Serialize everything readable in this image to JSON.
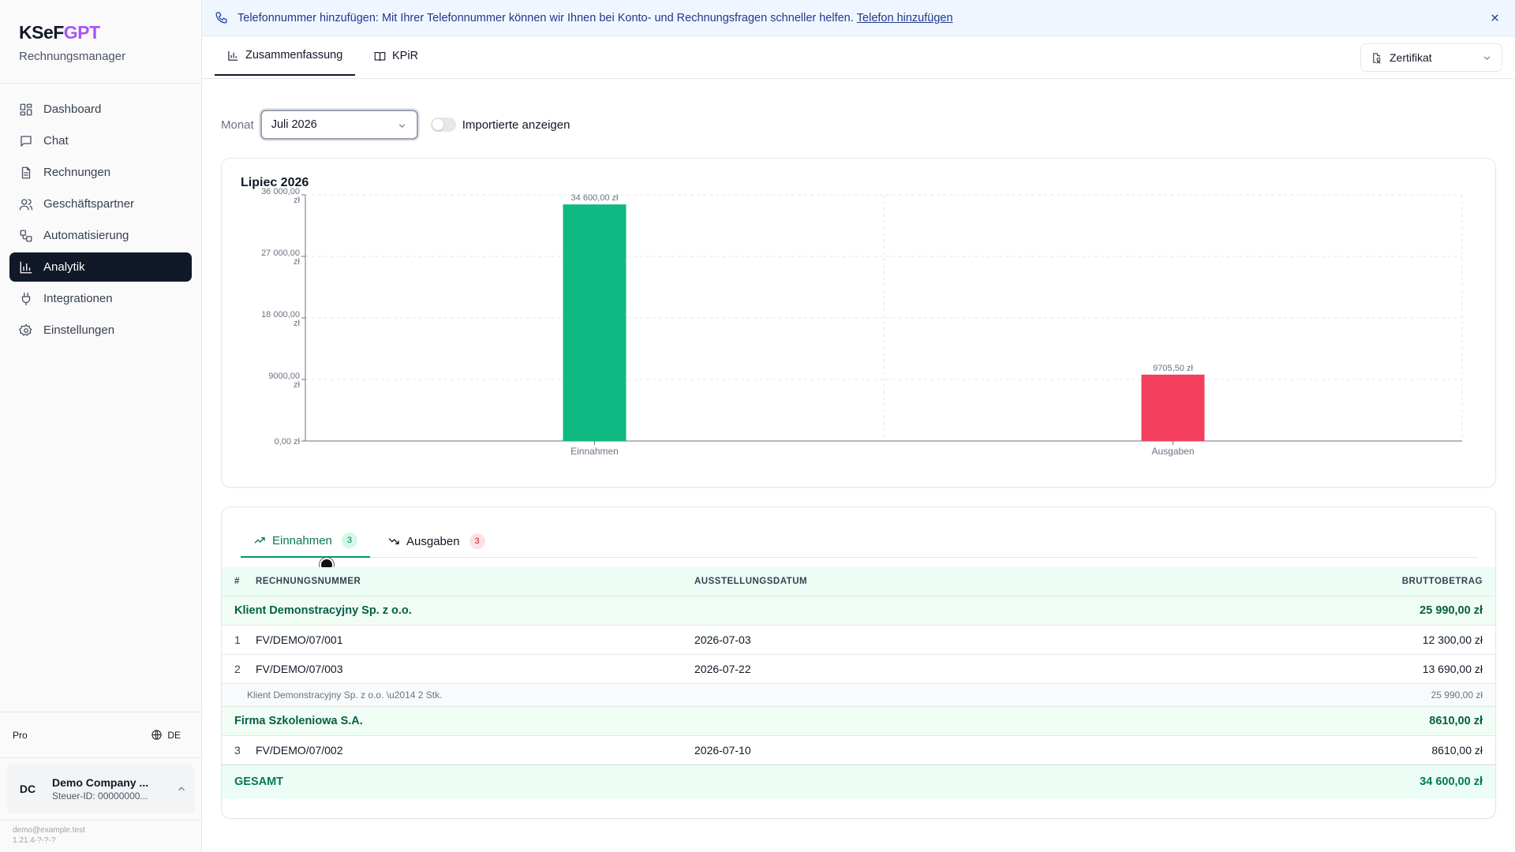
{
  "brand": {
    "logo_prefix": "KSeF",
    "logo_suffix": "GPT",
    "subtitle": "Rechnungsmanager"
  },
  "nav": {
    "items": [
      {
        "label": "Dashboard",
        "icon": "grid-icon"
      },
      {
        "label": "Chat",
        "icon": "chat-icon"
      },
      {
        "label": "Rechnungen",
        "icon": "document-icon"
      },
      {
        "label": "Geschäftspartner",
        "icon": "users-icon"
      },
      {
        "label": "Automatisierung",
        "icon": "workflow-icon"
      },
      {
        "label": "Analytik",
        "icon": "bar-chart-icon",
        "active": true
      },
      {
        "label": "Integrationen",
        "icon": "plug-icon"
      },
      {
        "label": "Einstellungen",
        "icon": "gear-icon"
      }
    ]
  },
  "sidebar_footer": {
    "plan": "Pro",
    "language": "DE",
    "company_initials": "DC",
    "company_name": "Demo Company ...",
    "company_tax": "Steuer-ID: 00000000...",
    "email": "demo@example.test",
    "version": "1.21.4-?-?-?"
  },
  "banner": {
    "text": "Telefonnummer hinzufügen: Mit Ihrer Telefonnummer können wir Ihnen bei Konto- und Rechnungsfragen schneller helfen.",
    "link": "Telefon hinzufügen"
  },
  "tabs": [
    {
      "label": "Zusammenfassung",
      "active": true
    },
    {
      "label": "KPiR",
      "active": false
    }
  ],
  "certificate": {
    "label": "Zertifikat"
  },
  "filter": {
    "month_label": "Monat",
    "month_value": "Juli 2026",
    "toggle_label": "Importierte anzeigen",
    "toggle_on": false
  },
  "chart_data": {
    "type": "bar",
    "title": "Lipiec 2026",
    "categories": [
      "Einnahmen",
      "Ausgaben"
    ],
    "values": [
      34600,
      9705.5
    ],
    "data_labels": [
      "34 600,00 zł",
      "9705,50 zł"
    ],
    "colors": [
      "#10b981",
      "#f43f5e"
    ],
    "ylim": [
      0,
      36000
    ],
    "yticks": [
      0,
      9000,
      18000,
      27000,
      36000
    ],
    "ytick_labels": [
      [
        "0,00 zł"
      ],
      [
        "9000,00",
        "zł"
      ],
      [
        "18 000,00",
        "zł"
      ],
      [
        "27 000,00",
        "zł"
      ],
      [
        "36 000,00",
        "zł"
      ]
    ],
    "grid": true,
    "xlabel": "",
    "ylabel": ""
  },
  "subtabs": [
    {
      "label": "Einnahmen",
      "count": "3",
      "active": true
    },
    {
      "label": "Ausgaben",
      "count": "3",
      "active": false
    }
  ],
  "table": {
    "headers": {
      "num": "#",
      "invoice": "RECHNUNGSNUMMER",
      "date": "AUSSTELLUNGSDATUM",
      "amount": "BRUTTOBETRAG"
    },
    "groups": [
      {
        "name": "Klient Demonstracyjny Sp. z o.o.",
        "amount": "25 990,00 zł",
        "rows": [
          {
            "num": "1",
            "invoice": "FV/DEMO/07/001",
            "date": "2026-07-03",
            "amount": "12 300,00 zł"
          },
          {
            "num": "2",
            "invoice": "FV/DEMO/07/003",
            "date": "2026-07-22",
            "amount": "13 690,00 zł"
          }
        ],
        "subtotal_label": "Klient Demonstracyjny Sp. z o.o. \\u2014 2 Stk.",
        "subtotal_amount": "25 990,00 zł"
      },
      {
        "name": "Firma Szkoleniowa S.A.",
        "amount": "8610,00 zł",
        "rows": [
          {
            "num": "3",
            "invoice": "FV/DEMO/07/002",
            "date": "2026-07-10",
            "amount": "8610,00 zł"
          }
        ]
      }
    ],
    "total_label": "GESAMT",
    "total_amount": "34 600,00 zł"
  }
}
